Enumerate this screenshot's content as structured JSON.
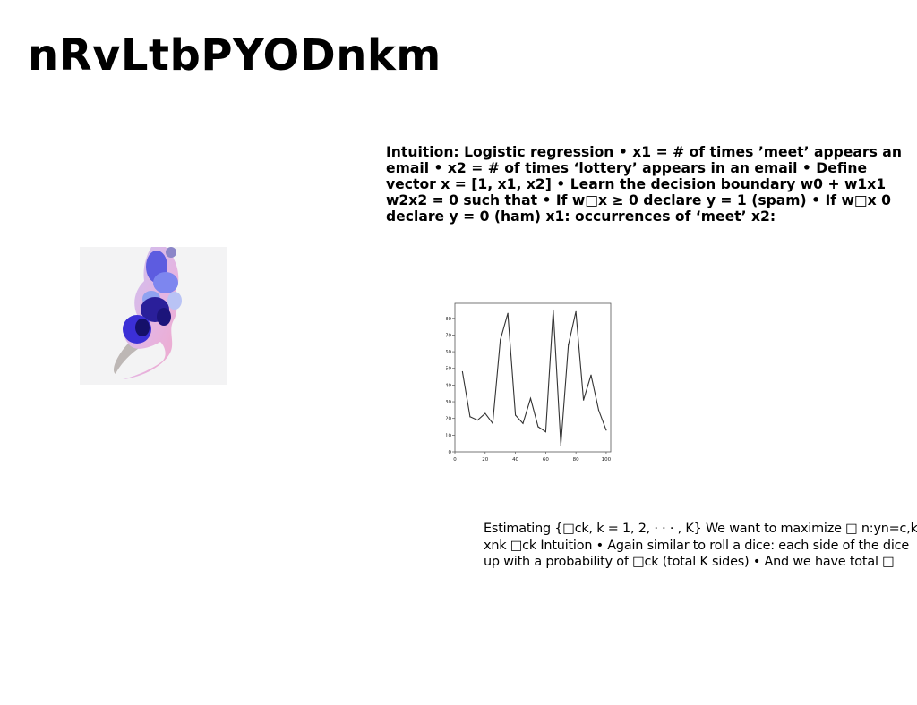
{
  "page": {
    "title": "nRvLtbPYODnkm",
    "paragraph1": "Intuition: Logistic regression • x1 = # of times ’meet’ appears an email • x2 = # of times ‘lottery’ appears in an email • Define vector x = [1, x1, x2] • Learn the decision boundary w0 + w1x1 w2x2 = 0 such that • If w□x ≥ 0 declare y = 1 (spam) • If w□x 0 declare y = 0 (ham) x1: occurrences of ‘meet’ x2:",
    "paragraph2": "Estimating {□ck, k = 1, 2, · · · , K} We want to maximize □ n:yn=c,k xnk □ck Intuition • Again similar to roll a dice: each side of the dice up with a probability of □ck (total K sides) • And we have total □"
  },
  "colors": {
    "line": "#333333",
    "axis": "#555555",
    "photo_accent": "#3b2fd6"
  },
  "chart_data": {
    "type": "line",
    "x": [
      5,
      10,
      15,
      20,
      25,
      30,
      35,
      40,
      45,
      50,
      55,
      60,
      65,
      70,
      75,
      80,
      85,
      90,
      95,
      100
    ],
    "series": [
      {
        "values": [
          48,
          21,
          19,
          23,
          17,
          67,
          83,
          22,
          17,
          32,
          15,
          12,
          85,
          4,
          64,
          84,
          31,
          46,
          25,
          13
        ]
      }
    ],
    "xlim": [
      0,
      103
    ],
    "ylim": [
      0,
      89
    ],
    "xticks": [
      0,
      20,
      40,
      60,
      80,
      100
    ],
    "yticks": [
      0,
      10,
      20,
      30,
      40,
      50,
      60,
      70,
      80
    ],
    "grid": false,
    "title": "",
    "xlabel": "",
    "ylabel": ""
  }
}
